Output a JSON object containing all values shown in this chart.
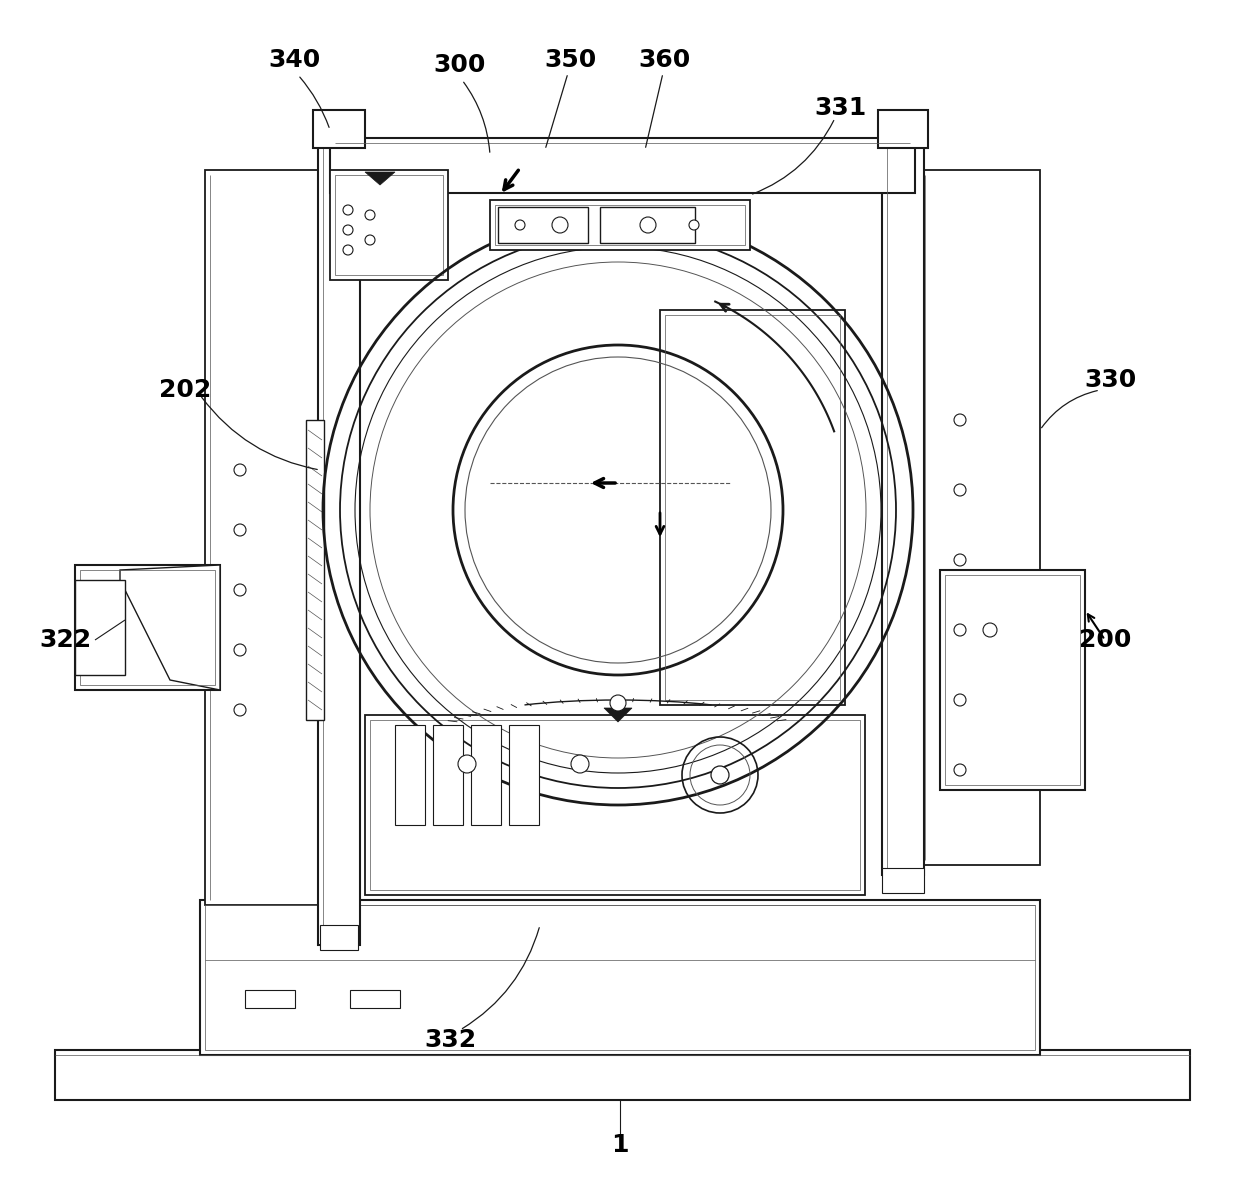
{
  "bg": "#ffffff",
  "lc": "#1a1a1a",
  "lc2": "#555555",
  "figsize": [
    12.4,
    11.89
  ],
  "dpi": 100
}
